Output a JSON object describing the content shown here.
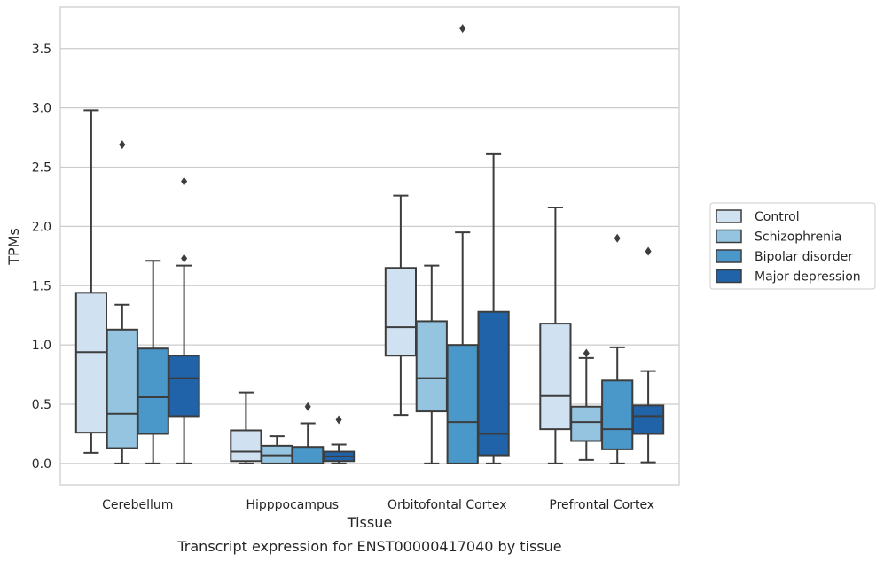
{
  "chart_data": {
    "type": "box",
    "xlabel": "Tissue",
    "ylabel": "TPMs",
    "caption": "Transcript expression for ENST00000417040 by tissue",
    "ylim": [
      -0.18,
      3.85
    ],
    "yticks": [
      0.0,
      0.5,
      1.0,
      1.5,
      2.0,
      2.5,
      3.0,
      3.5
    ],
    "ytick_labels": [
      "0.0",
      "0.5",
      "1.0",
      "1.5",
      "2.0",
      "2.5",
      "3.0",
      "3.5"
    ],
    "grid": "horizontal",
    "legend_position": "right",
    "categories": [
      "Cerebellum",
      "Hipppocampus",
      "Orbitofontal Cortex",
      "Prefrontal Cortex"
    ],
    "series": [
      {
        "name": "Control",
        "color": "#d0e1f2",
        "boxes": [
          {
            "wlo": 0.09,
            "q1": 0.26,
            "med": 0.94,
            "q3": 1.44,
            "whi": 2.98,
            "outliers": []
          },
          {
            "wlo": 0.0,
            "q1": 0.02,
            "med": 0.1,
            "q3": 0.28,
            "whi": 0.6,
            "outliers": []
          },
          {
            "wlo": 0.41,
            "q1": 0.91,
            "med": 1.15,
            "q3": 1.65,
            "whi": 2.26,
            "outliers": []
          },
          {
            "wlo": 0.0,
            "q1": 0.29,
            "med": 0.57,
            "q3": 1.18,
            "whi": 2.16,
            "outliers": []
          }
        ]
      },
      {
        "name": "Schizophrenia",
        "color": "#94c4df",
        "boxes": [
          {
            "wlo": 0.0,
            "q1": 0.13,
            "med": 0.42,
            "q3": 1.13,
            "whi": 1.34,
            "outliers": [
              2.69
            ]
          },
          {
            "wlo": 0.0,
            "q1": 0.0,
            "med": 0.07,
            "q3": 0.15,
            "whi": 0.23,
            "outliers": []
          },
          {
            "wlo": 0.0,
            "q1": 0.44,
            "med": 0.72,
            "q3": 1.2,
            "whi": 1.67,
            "outliers": []
          },
          {
            "wlo": 0.03,
            "q1": 0.19,
            "med": 0.35,
            "q3": 0.48,
            "whi": 0.89,
            "outliers": [
              0.93
            ]
          }
        ]
      },
      {
        "name": "Bipolar disorder",
        "color": "#4a98c9",
        "boxes": [
          {
            "wlo": 0.0,
            "q1": 0.25,
            "med": 0.56,
            "q3": 0.97,
            "whi": 1.71,
            "outliers": []
          },
          {
            "wlo": 0.0,
            "q1": 0.0,
            "med": 0.0,
            "q3": 0.14,
            "whi": 0.34,
            "outliers": [
              0.48
            ]
          },
          {
            "wlo": 0.0,
            "q1": 0.0,
            "med": 0.35,
            "q3": 1.0,
            "whi": 1.95,
            "outliers": [
              3.67
            ]
          },
          {
            "wlo": 0.0,
            "q1": 0.12,
            "med": 0.29,
            "q3": 0.7,
            "whi": 0.98,
            "outliers": [
              1.9
            ]
          }
        ]
      },
      {
        "name": "Major depression",
        "color": "#2163a9",
        "boxes": [
          {
            "wlo": 0.0,
            "q1": 0.4,
            "med": 0.72,
            "q3": 0.91,
            "whi": 1.67,
            "outliers": [
              1.73,
              2.38
            ]
          },
          {
            "wlo": 0.0,
            "q1": 0.02,
            "med": 0.06,
            "q3": 0.1,
            "whi": 0.16,
            "outliers": [
              0.37
            ]
          },
          {
            "wlo": 0.0,
            "q1": 0.07,
            "med": 0.25,
            "q3": 1.28,
            "whi": 2.61,
            "outliers": []
          },
          {
            "wlo": 0.01,
            "q1": 0.25,
            "med": 0.4,
            "q3": 0.49,
            "whi": 0.78,
            "outliers": [
              1.79
            ]
          }
        ]
      }
    ]
  }
}
